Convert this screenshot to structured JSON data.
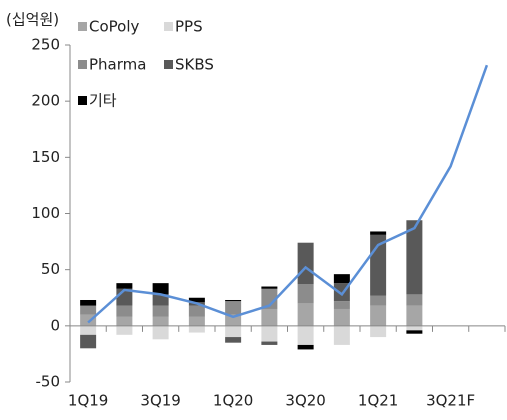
{
  "chart_data": {
    "type": "bar",
    "stacked": true,
    "unit_label": "(십억원)",
    "categories": [
      "1Q19",
      null,
      "3Q19",
      null,
      "1Q20",
      null,
      "3Q20",
      null,
      "1Q21",
      null,
      "3Q21F",
      null
    ],
    "series": [
      {
        "name": "CoPoly",
        "color": "#a6a6a6",
        "values": [
          10,
          8,
          8,
          8,
          10,
          15,
          20,
          15,
          18,
          18,
          null,
          null
        ]
      },
      {
        "name": "PPS",
        "color": "#d9d9d9",
        "values": [
          -8,
          -8,
          -12,
          -6,
          -10,
          -14,
          -17,
          -17,
          -10,
          -4,
          null,
          null
        ]
      },
      {
        "name": "Pharma",
        "color": "#8c8c8c",
        "values": [
          8,
          10,
          10,
          10,
          12,
          18,
          17,
          7,
          9,
          10,
          null,
          null
        ]
      },
      {
        "name": "SKBS",
        "color": "#595959",
        "values": [
          -12,
          15,
          10,
          3,
          -5,
          -3,
          37,
          16,
          54,
          66,
          null,
          null
        ]
      },
      {
        "name": "기타",
        "color": "#000000",
        "values": [
          5,
          5,
          10,
          4,
          1,
          2,
          -4,
          8,
          3,
          -3,
          null,
          null
        ]
      }
    ],
    "line": {
      "color": "#5b8fd6",
      "values": [
        3,
        32,
        28,
        20,
        8,
        18,
        52,
        28,
        72,
        87,
        142,
        232
      ]
    },
    "ylim": [
      -50,
      250
    ],
    "yticks": [
      -50,
      0,
      50,
      100,
      150,
      200,
      250
    ]
  }
}
